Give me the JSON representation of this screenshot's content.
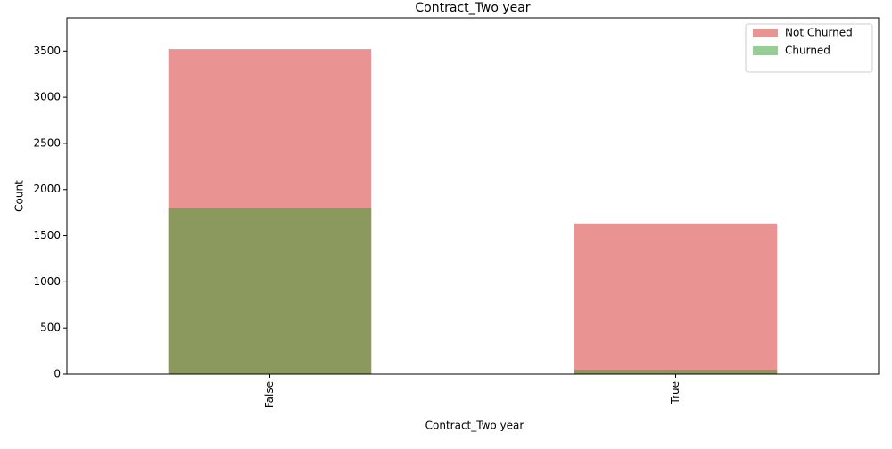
{
  "chart_data": {
    "type": "bar",
    "overlap": true,
    "title": "Contract_Two year",
    "x_label": "Contract_Two year",
    "y_label": "Count",
    "categories": [
      "False",
      "True"
    ],
    "series": [
      {
        "name": "Not Churned",
        "color": "#d62728",
        "values": [
          3521,
          1633
        ]
      },
      {
        "name": "Churned",
        "color": "#2ca02c",
        "values": [
          1800,
          48
        ]
      }
    ],
    "ylim": [
      0,
      3860
    ],
    "yticks": [
      0,
      500,
      1000,
      1500,
      2000,
      2500,
      3000,
      3500
    ],
    "legend": "upper right",
    "opacity": 0.5
  }
}
